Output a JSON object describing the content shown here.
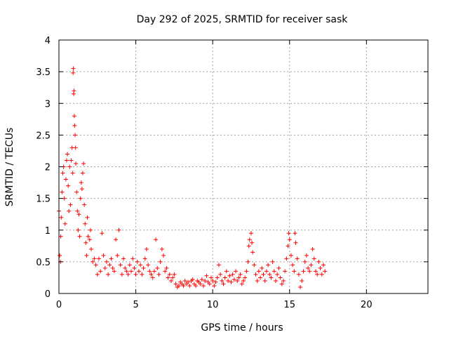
{
  "chart_data": {
    "type": "scatter",
    "title": "Day 292 of 2025, SRMTID for receiver sask",
    "xlabel": "GPS time / hours",
    "ylabel": "SRMTID / TECUs",
    "xlim": [
      0,
      24
    ],
    "ylim": [
      0,
      4
    ],
    "x_ticks": [
      0,
      5,
      10,
      15,
      20
    ],
    "x_tick_labels": [
      "0",
      "5",
      "10",
      "15",
      "20"
    ],
    "y_ticks": [
      0,
      0.5,
      1,
      1.5,
      2,
      2.5,
      3,
      3.5,
      4
    ],
    "y_tick_labels": [
      "0",
      "0.5",
      "1",
      "1.5",
      "2",
      "2.5",
      "3",
      "3.5",
      "4"
    ],
    "grid": true,
    "marker": "+",
    "color": "#ff0000",
    "series": [
      {
        "name": "SRMTID",
        "points": [
          [
            0.0,
            1.3
          ],
          [
            0.05,
            0.6
          ],
          [
            0.1,
            0.5
          ],
          [
            0.12,
            0.9
          ],
          [
            0.15,
            1.2
          ],
          [
            0.2,
            1.6
          ],
          [
            0.25,
            1.9
          ],
          [
            0.3,
            2.0
          ],
          [
            0.35,
            1.5
          ],
          [
            0.4,
            1.1
          ],
          [
            0.45,
            1.8
          ],
          [
            0.5,
            2.1
          ],
          [
            0.55,
            2.2
          ],
          [
            0.6,
            1.7
          ],
          [
            0.65,
            1.3
          ],
          [
            0.7,
            2.0
          ],
          [
            0.75,
            1.4
          ],
          [
            0.8,
            2.1
          ],
          [
            0.85,
            2.3
          ],
          [
            0.9,
            1.9
          ],
          [
            0.92,
            3.48
          ],
          [
            0.94,
            3.55
          ],
          [
            0.96,
            3.15
          ],
          [
            0.98,
            3.2
          ],
          [
            1.0,
            2.8
          ],
          [
            1.02,
            2.65
          ],
          [
            1.05,
            2.5
          ],
          [
            1.08,
            2.3
          ],
          [
            1.1,
            2.05
          ],
          [
            1.15,
            1.6
          ],
          [
            1.2,
            1.3
          ],
          [
            1.25,
            1.0
          ],
          [
            1.3,
            1.25
          ],
          [
            1.35,
            0.9
          ],
          [
            1.4,
            1.5
          ],
          [
            1.45,
            1.75
          ],
          [
            1.5,
            1.65
          ],
          [
            1.55,
            1.9
          ],
          [
            1.6,
            2.05
          ],
          [
            1.65,
            1.4
          ],
          [
            1.7,
            1.1
          ],
          [
            1.75,
            0.8
          ],
          [
            1.8,
            0.6
          ],
          [
            1.85,
            1.2
          ],
          [
            1.9,
            0.9
          ],
          [
            2.0,
            0.85
          ],
          [
            2.05,
            1.0
          ],
          [
            2.1,
            0.7
          ],
          [
            2.2,
            0.5
          ],
          [
            2.3,
            0.55
          ],
          [
            2.4,
            0.45
          ],
          [
            2.5,
            0.3
          ],
          [
            2.6,
            0.55
          ],
          [
            2.7,
            0.35
          ],
          [
            2.8,
            0.95
          ],
          [
            2.9,
            0.6
          ],
          [
            3.0,
            0.4
          ],
          [
            3.1,
            0.5
          ],
          [
            3.2,
            0.3
          ],
          [
            3.3,
            0.45
          ],
          [
            3.4,
            0.55
          ],
          [
            3.5,
            0.4
          ],
          [
            3.6,
            0.35
          ],
          [
            3.7,
            0.85
          ],
          [
            3.8,
            0.6
          ],
          [
            3.9,
            1.0
          ],
          [
            4.0,
            0.45
          ],
          [
            4.1,
            0.3
          ],
          [
            4.2,
            0.55
          ],
          [
            4.3,
            0.4
          ],
          [
            4.4,
            0.35
          ],
          [
            4.5,
            0.3
          ],
          [
            4.6,
            0.45
          ],
          [
            4.7,
            0.35
          ],
          [
            4.8,
            0.55
          ],
          [
            4.9,
            0.4
          ],
          [
            5.0,
            0.3
          ],
          [
            5.1,
            0.5
          ],
          [
            5.2,
            0.35
          ],
          [
            5.3,
            0.45
          ],
          [
            5.4,
            0.3
          ],
          [
            5.5,
            0.4
          ],
          [
            5.6,
            0.55
          ],
          [
            5.7,
            0.7
          ],
          [
            5.8,
            0.45
          ],
          [
            5.9,
            0.35
          ],
          [
            6.0,
            0.3
          ],
          [
            6.1,
            0.25
          ],
          [
            6.2,
            0.35
          ],
          [
            6.3,
            0.85
          ],
          [
            6.4,
            0.4
          ],
          [
            6.5,
            0.3
          ],
          [
            6.6,
            0.5
          ],
          [
            6.7,
            0.7
          ],
          [
            6.8,
            0.6
          ],
          [
            6.9,
            0.35
          ],
          [
            7.0,
            0.4
          ],
          [
            7.1,
            0.25
          ],
          [
            7.2,
            0.3
          ],
          [
            7.3,
            0.2
          ],
          [
            7.4,
            0.25
          ],
          [
            7.5,
            0.3
          ],
          [
            7.6,
            0.15
          ],
          [
            7.7,
            0.1
          ],
          [
            7.8,
            0.12
          ],
          [
            7.9,
            0.18
          ],
          [
            8.0,
            0.15
          ],
          [
            8.1,
            0.12
          ],
          [
            8.2,
            0.2
          ],
          [
            8.3,
            0.15
          ],
          [
            8.4,
            0.18
          ],
          [
            8.5,
            0.12
          ],
          [
            8.6,
            0.2
          ],
          [
            8.7,
            0.22
          ],
          [
            8.8,
            0.15
          ],
          [
            8.9,
            0.12
          ],
          [
            9.0,
            0.2
          ],
          [
            9.1,
            0.18
          ],
          [
            9.2,
            0.15
          ],
          [
            9.3,
            0.22
          ],
          [
            9.4,
            0.12
          ],
          [
            9.5,
            0.2
          ],
          [
            9.6,
            0.28
          ],
          [
            9.7,
            0.18
          ],
          [
            9.8,
            0.15
          ],
          [
            9.9,
            0.25
          ],
          [
            10.0,
            0.2
          ],
          [
            10.1,
            0.12
          ],
          [
            10.2,
            0.18
          ],
          [
            10.3,
            0.25
          ],
          [
            10.4,
            0.45
          ],
          [
            10.5,
            0.3
          ],
          [
            10.6,
            0.2
          ],
          [
            10.7,
            0.15
          ],
          [
            10.8,
            0.25
          ],
          [
            10.9,
            0.35
          ],
          [
            11.0,
            0.2
          ],
          [
            11.1,
            0.28
          ],
          [
            11.2,
            0.18
          ],
          [
            11.3,
            0.3
          ],
          [
            11.4,
            0.22
          ],
          [
            11.5,
            0.35
          ],
          [
            11.6,
            0.2
          ],
          [
            11.7,
            0.25
          ],
          [
            11.8,
            0.3
          ],
          [
            11.9,
            0.15
          ],
          [
            12.0,
            0.2
          ],
          [
            12.1,
            0.25
          ],
          [
            12.2,
            0.35
          ],
          [
            12.3,
            0.5
          ],
          [
            12.35,
            0.75
          ],
          [
            12.4,
            0.85
          ],
          [
            12.5,
            0.95
          ],
          [
            12.55,
            0.8
          ],
          [
            12.6,
            0.65
          ],
          [
            12.7,
            0.45
          ],
          [
            12.8,
            0.3
          ],
          [
            12.9,
            0.2
          ],
          [
            13.0,
            0.35
          ],
          [
            13.1,
            0.25
          ],
          [
            13.2,
            0.4
          ],
          [
            13.3,
            0.3
          ],
          [
            13.4,
            0.2
          ],
          [
            13.5,
            0.35
          ],
          [
            13.6,
            0.45
          ],
          [
            13.7,
            0.3
          ],
          [
            13.8,
            0.25
          ],
          [
            13.9,
            0.5
          ],
          [
            14.0,
            0.35
          ],
          [
            14.1,
            0.2
          ],
          [
            14.2,
            0.3
          ],
          [
            14.3,
            0.4
          ],
          [
            14.4,
            0.25
          ],
          [
            14.5,
            0.15
          ],
          [
            14.6,
            0.2
          ],
          [
            14.7,
            0.35
          ],
          [
            14.8,
            0.55
          ],
          [
            14.9,
            0.75
          ],
          [
            14.95,
            0.95
          ],
          [
            15.0,
            0.85
          ],
          [
            15.1,
            0.6
          ],
          [
            15.2,
            0.45
          ],
          [
            15.3,
            0.35
          ],
          [
            15.35,
            0.95
          ],
          [
            15.4,
            0.8
          ],
          [
            15.5,
            0.55
          ],
          [
            15.6,
            0.3
          ],
          [
            15.7,
            0.1
          ],
          [
            15.8,
            0.2
          ],
          [
            15.9,
            0.35
          ],
          [
            16.0,
            0.5
          ],
          [
            16.1,
            0.6
          ],
          [
            16.2,
            0.4
          ],
          [
            16.3,
            0.35
          ],
          [
            16.4,
            0.45
          ],
          [
            16.5,
            0.7
          ],
          [
            16.6,
            0.55
          ],
          [
            16.7,
            0.35
          ],
          [
            16.8,
            0.3
          ],
          [
            16.9,
            0.5
          ],
          [
            17.0,
            0.4
          ],
          [
            17.1,
            0.3
          ],
          [
            17.2,
            0.45
          ],
          [
            17.3,
            0.35
          ]
        ]
      }
    ]
  }
}
